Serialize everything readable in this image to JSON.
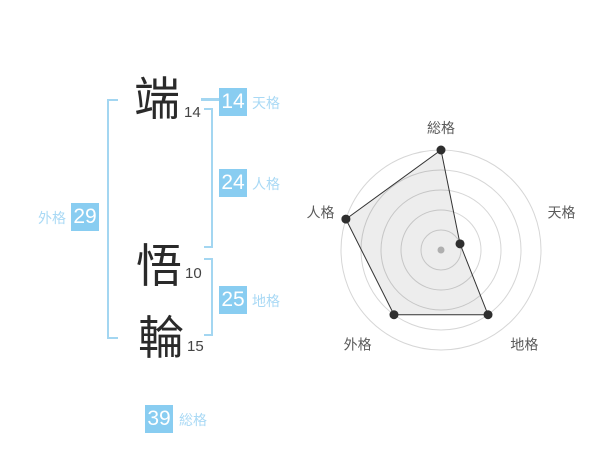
{
  "name_diagram": {
    "characters": [
      {
        "glyph": "端",
        "strokes": "14"
      },
      {
        "glyph": "悟",
        "strokes": "10"
      },
      {
        "glyph": "輪",
        "strokes": "15"
      }
    ],
    "badges": {
      "tenkaku": {
        "value": "14",
        "label": "天格"
      },
      "jinkaku": {
        "value": "24",
        "label": "人格"
      },
      "chikaku": {
        "value": "25",
        "label": "地格"
      },
      "gaikaku": {
        "value": "29",
        "label": "外格"
      },
      "soukaku": {
        "value": "39",
        "label": "総格"
      }
    },
    "accent_color": "#89cdf1",
    "label_color": "#a9d9f5",
    "bracket_color": "#a3d6f1"
  },
  "chart_data": {
    "type": "radar",
    "categories": [
      "総格",
      "天格",
      "地格",
      "外格",
      "人格"
    ],
    "values": [
      5,
      1,
      4,
      4,
      5
    ],
    "max": 5,
    "rings": 5,
    "start_angle_deg": 90,
    "direction": "clockwise",
    "grid": "circular",
    "legend": "none",
    "title": "",
    "screen_values": {
      "総格": "39",
      "天格": "14",
      "地格": "25",
      "外格": "29",
      "人格": "24"
    },
    "styles": {
      "ring_color": "#d6d6d6",
      "line_color": "#333333",
      "fill_color": "rgba(0,0,0,0.07)",
      "point_color": "#2e2e2e",
      "center_dot_color": "#bdbdbd",
      "label_color": "#5a5a5a"
    }
  }
}
